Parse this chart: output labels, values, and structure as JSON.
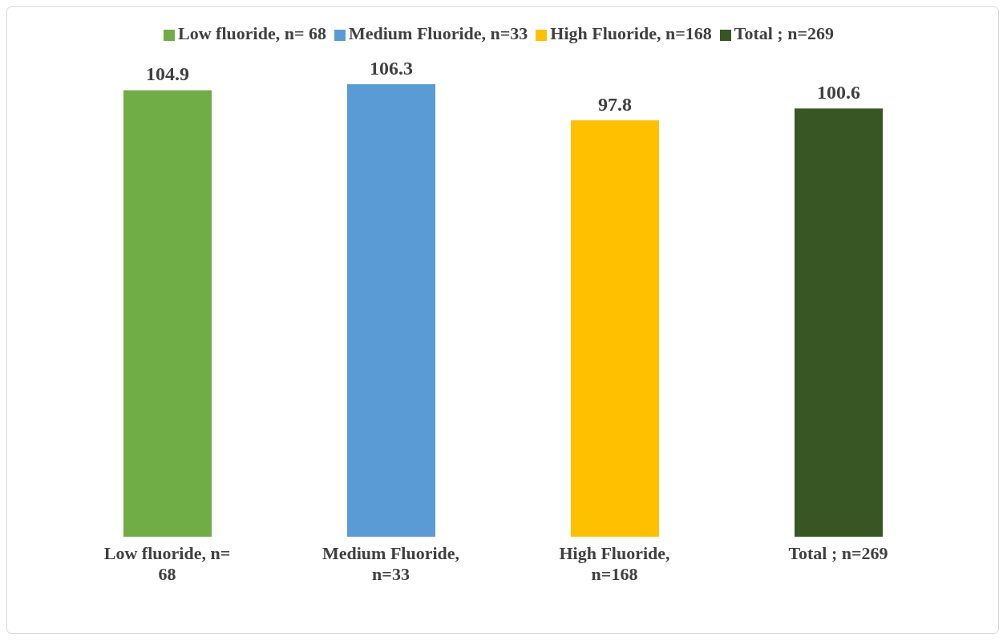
{
  "chart_data": {
    "type": "bar",
    "categories": [
      "Low fluoride, n= 68",
      "Medium Fluoride, n=33",
      "High Fluoride, n=168",
      "Total ; n=269"
    ],
    "series": [
      {
        "name": "Low fluoride, n= 68",
        "color": "#70ad47",
        "values": [
          104.9,
          null,
          null,
          null
        ]
      },
      {
        "name": "Medium Fluoride, n=33",
        "color": "#5b9bd5",
        "values": [
          null,
          106.3,
          null,
          null
        ]
      },
      {
        "name": "High Fluoride, n=168",
        "color": "#ffc000",
        "values": [
          null,
          null,
          97.8,
          null
        ]
      },
      {
        "name": "Total ; n=269",
        "color": "#375623",
        "values": [
          null,
          null,
          null,
          100.6
        ]
      }
    ],
    "stacked": true,
    "tick_labels": "x",
    "data_labels": true,
    "legend": "top"
  }
}
